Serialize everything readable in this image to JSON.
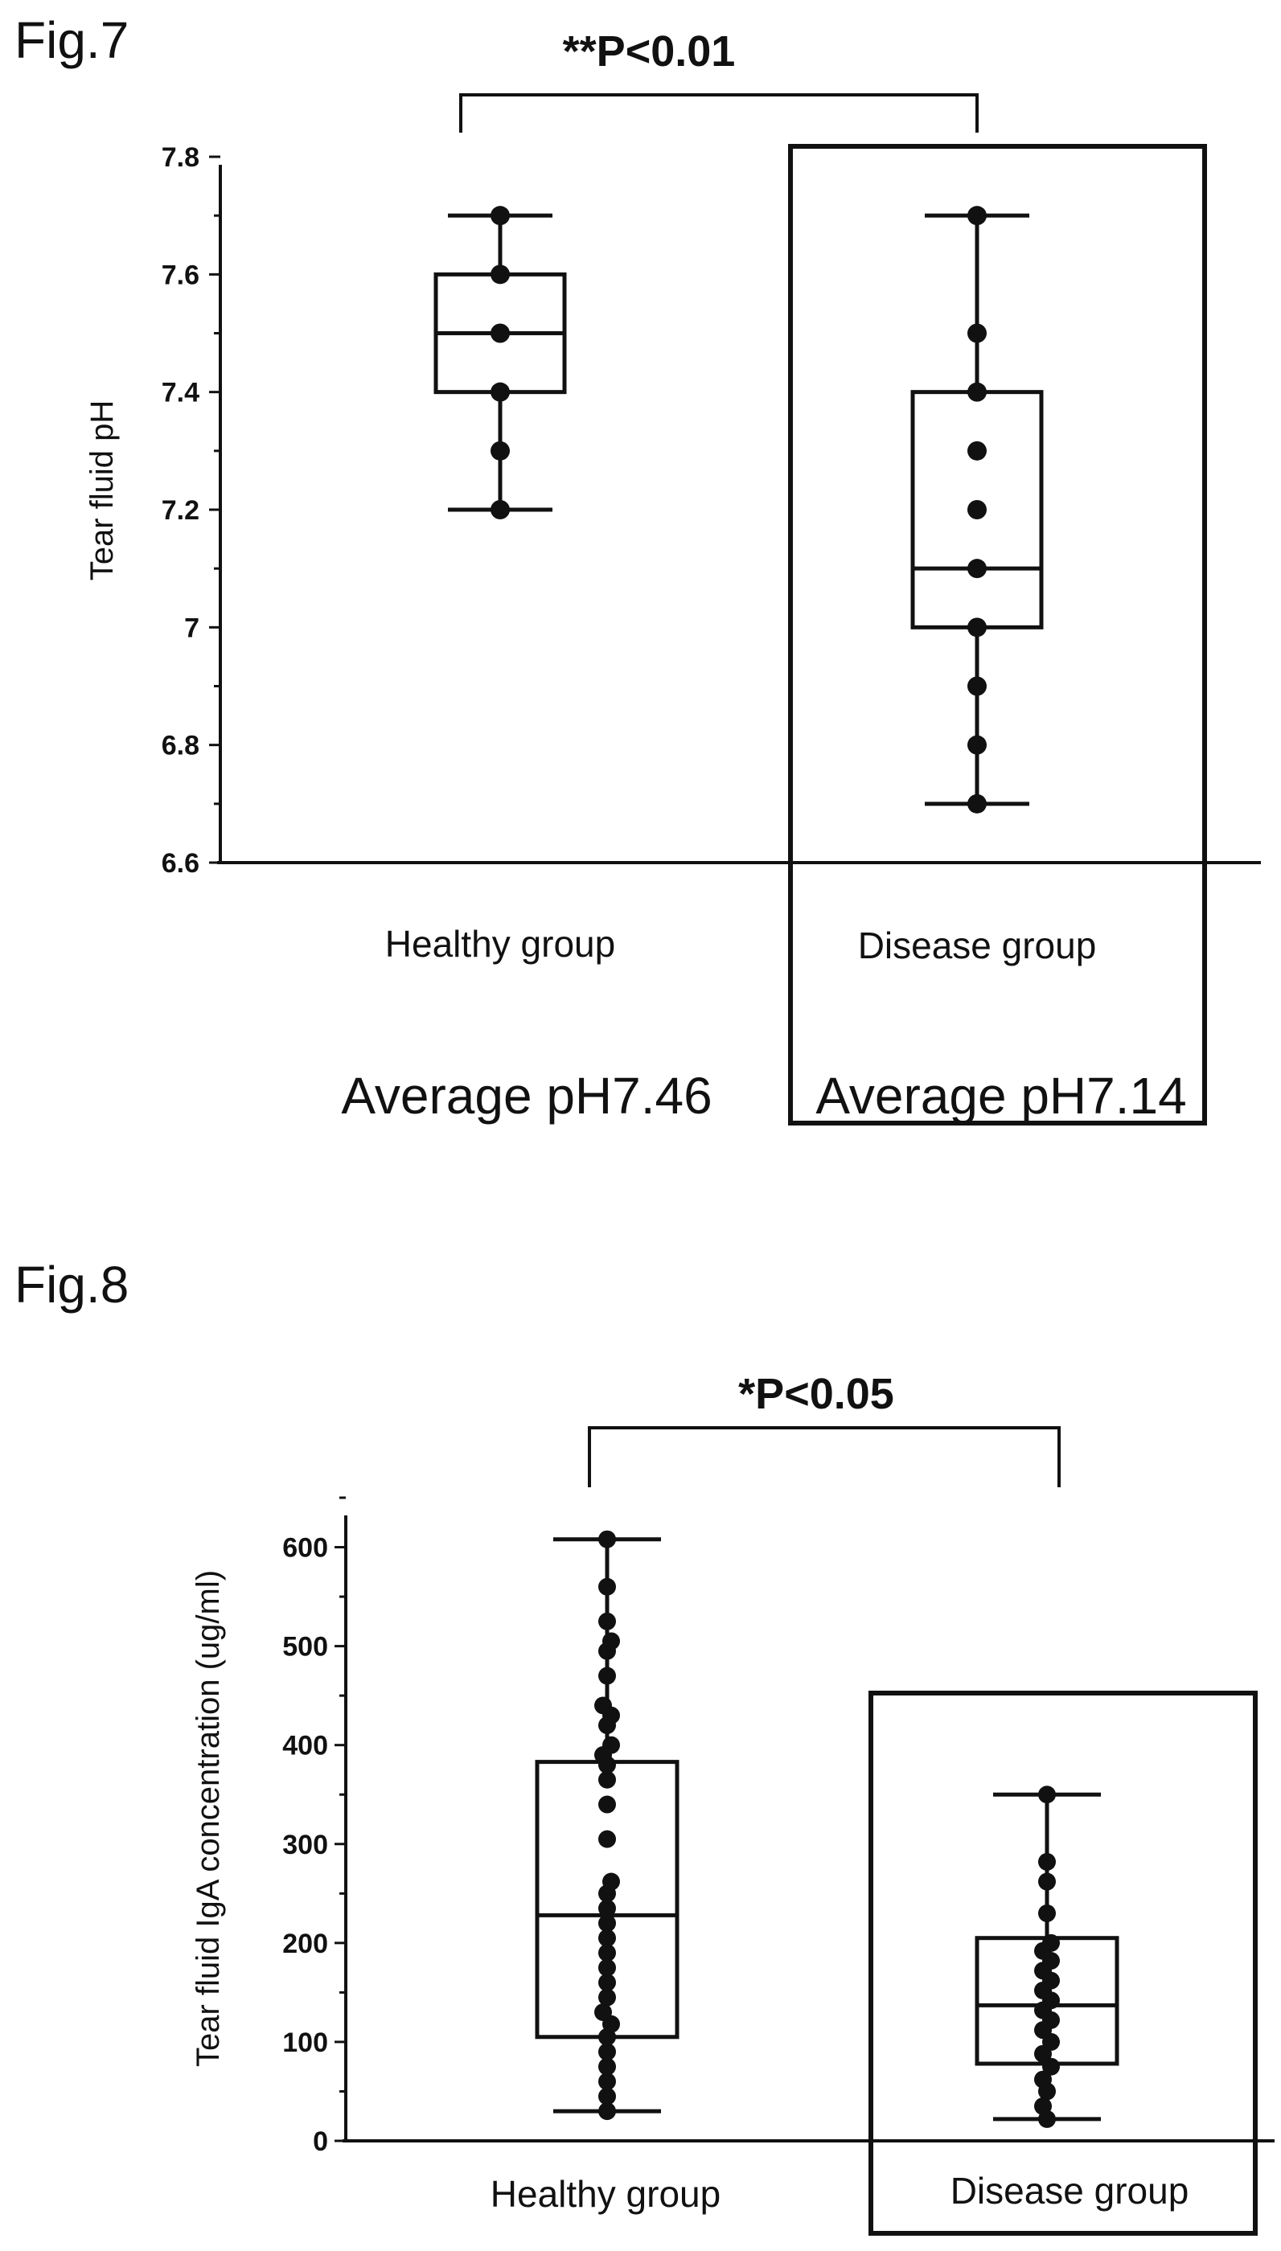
{
  "charts": [
    {
      "figure_label": "Fig.7",
      "chart_data": {
        "type": "box",
        "categories": [
          "Healthy group",
          "Disease group"
        ],
        "ylabel": "Tear fluid pH",
        "xlabel": "",
        "ylim": [
          6.6,
          7.8
        ],
        "yticks": [
          6.6,
          6.8,
          7.0,
          7.2,
          7.4,
          7.6,
          7.8
        ],
        "ytick_labels": [
          "6.6",
          "6.8",
          "7",
          "7.2",
          "7.4",
          "7.6",
          "7.8"
        ],
        "significance": "**P<0.01",
        "highlighted_category": "Disease group",
        "groups": [
          {
            "category": "Healthy group",
            "whisker_low": 7.2,
            "q1": 7.4,
            "median": 7.5,
            "q3": 7.6,
            "whisker_high": 7.7,
            "points": [
              7.2,
              7.3,
              7.4,
              7.5,
              7.6,
              7.7
            ],
            "annotation": "Average pH7.46"
          },
          {
            "category": "Disease group",
            "whisker_low": 6.7,
            "q1": 7.0,
            "median": 7.1,
            "q3": 7.4,
            "whisker_high": 7.7,
            "points": [
              6.7,
              6.8,
              6.9,
              7.0,
              7.1,
              7.2,
              7.3,
              7.4,
              7.5,
              7.7
            ],
            "annotation": "Average pH7.14"
          }
        ]
      }
    },
    {
      "figure_label": "Fig.8",
      "chart_data": {
        "type": "box",
        "categories": [
          "Healthy group",
          "Disease group"
        ],
        "ylabel": "Tear fluid IgA concentration (ug/ml)",
        "xlabel": "",
        "ylim": [
          0,
          650
        ],
        "yticks": [
          0,
          100,
          200,
          300,
          400,
          500,
          600
        ],
        "ytick_labels": [
          "0",
          "100",
          "200",
          "300",
          "400",
          "500",
          "600"
        ],
        "significance": "*P<0.05",
        "highlighted_category": "Disease group",
        "groups": [
          {
            "category": "Healthy group",
            "whisker_low": 30,
            "q1": 105,
            "median": 228,
            "q3": 383,
            "whisker_high": 608,
            "points": [
              30,
              45,
              60,
              75,
              90,
              105,
              118,
              130,
              145,
              160,
              175,
              190,
              205,
              220,
              235,
              250,
              262,
              305,
              340,
              365,
              380,
              390,
              400,
              420,
              430,
              440,
              470,
              495,
              505,
              525,
              560,
              608
            ]
          },
          {
            "category": "Disease group",
            "whisker_low": 22,
            "q1": 78,
            "median": 137,
            "q3": 205,
            "whisker_high": 350,
            "points": [
              22,
              35,
              50,
              62,
              75,
              88,
              100,
              112,
              122,
              132,
              142,
              152,
              162,
              172,
              182,
              192,
              200,
              230,
              262,
              282,
              350
            ]
          }
        ]
      }
    }
  ]
}
